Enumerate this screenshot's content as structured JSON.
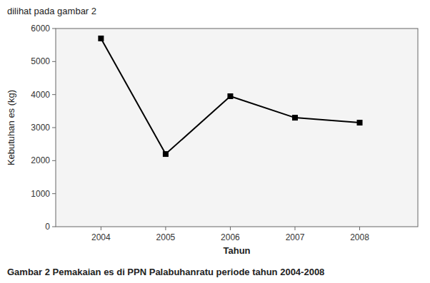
{
  "chart_data": {
    "type": "line",
    "annotations": [
      "dilihat pada gambar 2",
      "Gambar 2 Pemakaian es di PPN Palabuhanratu periode tahun 2004-2008"
    ],
    "x_label": "Tahun",
    "y_label": "Kebutuhan es (kg)",
    "x": [
      2004,
      2005,
      2006,
      2007,
      2008
    ],
    "values": [
      5700,
      2200,
      3950,
      3300,
      3150
    ],
    "xlim": [
      2003.3,
      2008.9
    ],
    "xticks": [
      2004,
      2005,
      2006,
      2007,
      2008
    ],
    "ylim": [
      0,
      6000
    ],
    "yticks": [
      0,
      1000,
      2000,
      3000,
      4000,
      5000,
      6000
    ],
    "color": "#000000",
    "marker": "square",
    "line_style": "solid",
    "grid": false
  }
}
